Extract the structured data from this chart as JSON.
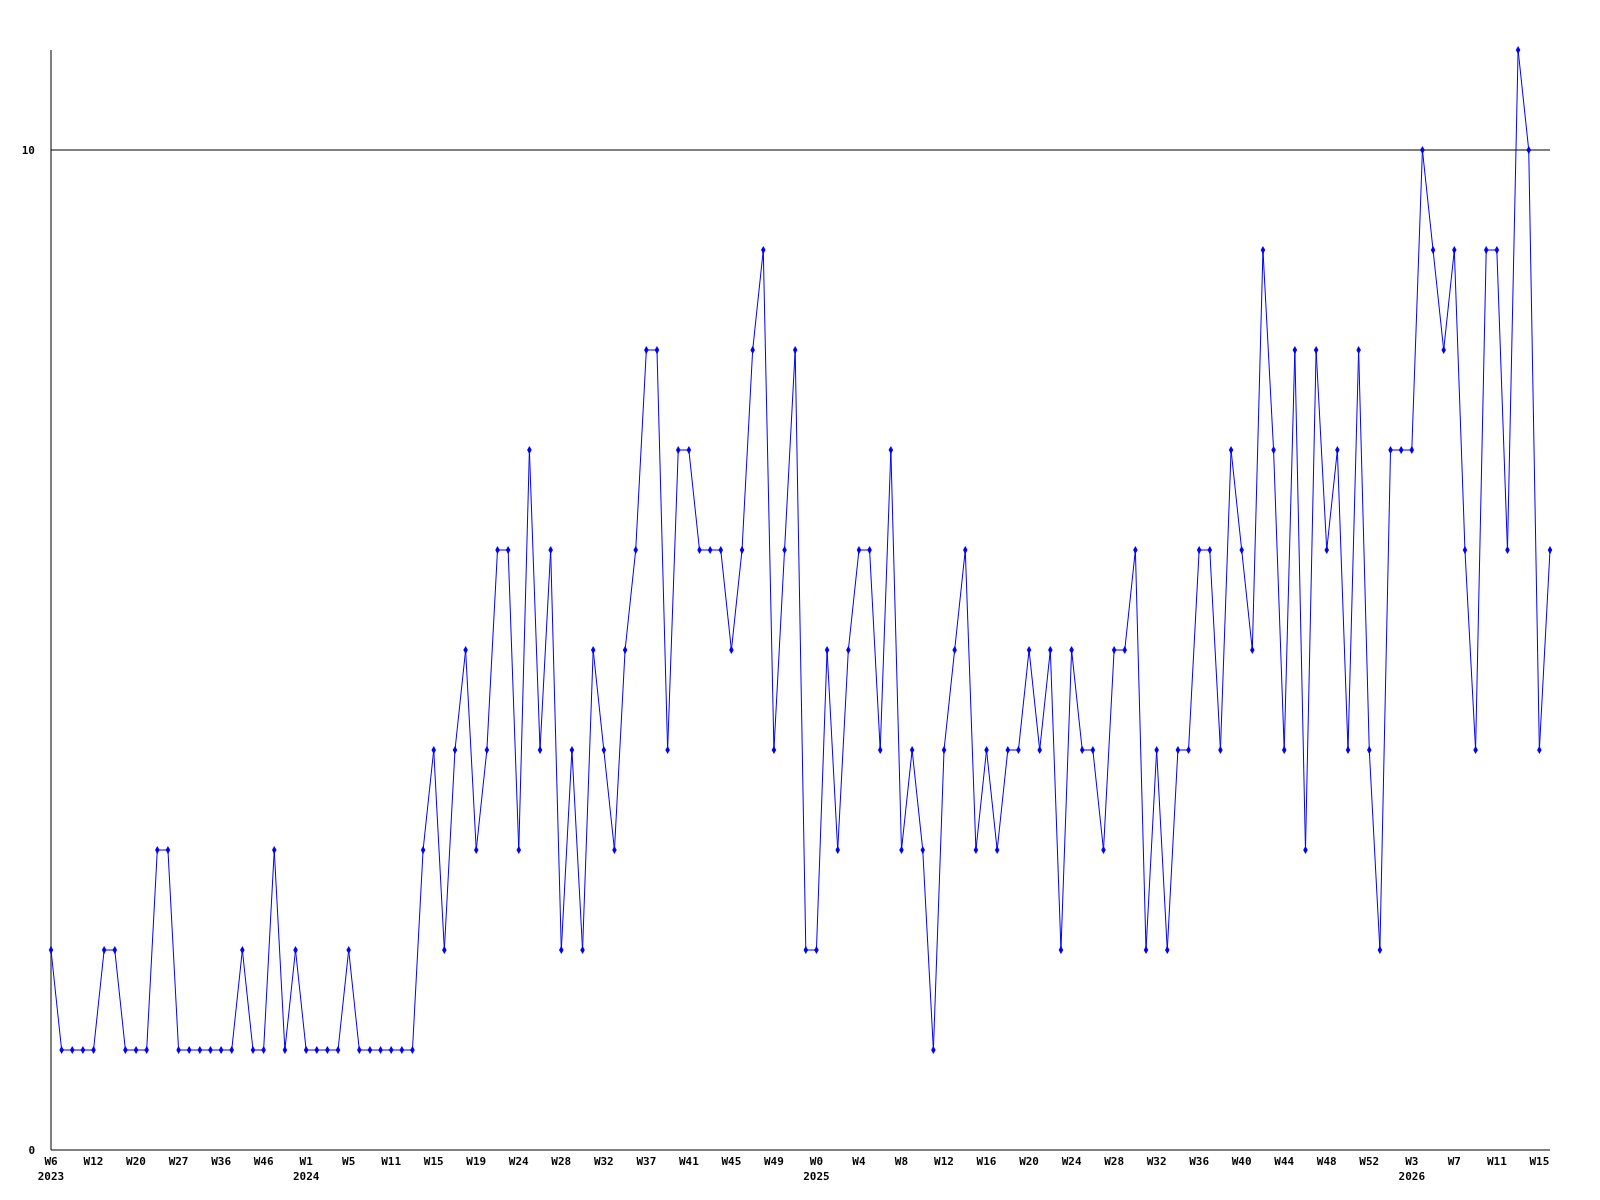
{
  "chart_data": {
    "type": "line",
    "categories": [
      "W6\n2023",
      null,
      null,
      null,
      "W12",
      null,
      null,
      null,
      "W20",
      null,
      null,
      null,
      "W27",
      null,
      null,
      null,
      "W36",
      null,
      null,
      null,
      "W46",
      null,
      null,
      null,
      "W1\n2024",
      null,
      null,
      null,
      "W5",
      null,
      null,
      null,
      "W11",
      null,
      null,
      null,
      "W15",
      null,
      null,
      null,
      "W19",
      null,
      null,
      null,
      "W24",
      null,
      null,
      null,
      "W28",
      null,
      null,
      null,
      "W32",
      null,
      null,
      null,
      "W37",
      null,
      null,
      null,
      "W41",
      null,
      null,
      null,
      "W45",
      null,
      null,
      null,
      "W49",
      null,
      null,
      null,
      "W0\n2025",
      null,
      null,
      null,
      "W4",
      null,
      null,
      null,
      "W8",
      null,
      null,
      null,
      "W12",
      null,
      null,
      null,
      "W16",
      null,
      null,
      null,
      "W20",
      null,
      null,
      null,
      "W24",
      null,
      null,
      null,
      "W28",
      null,
      null,
      null,
      "W32",
      null,
      null,
      null,
      "W36",
      null,
      null,
      null,
      "W40",
      null,
      null,
      null,
      "W44",
      null,
      null,
      null,
      "W48",
      null,
      null,
      null,
      "W52",
      null,
      null,
      null,
      "W3\n2026",
      null,
      null,
      null,
      "W7",
      null,
      null,
      null,
      "W11",
      null,
      null,
      null,
      "W15",
      null
    ],
    "series": [
      {
        "color": "#0000ff",
        "values": [
          2,
          1,
          1,
          1,
          1,
          2,
          2,
          1,
          1,
          1,
          3,
          3,
          1,
          1,
          1,
          1,
          1,
          1,
          2,
          1,
          1,
          3,
          1,
          2,
          1,
          1,
          1,
          1,
          2,
          1,
          1,
          1,
          1,
          1,
          1,
          3,
          4,
          2,
          4,
          5,
          3,
          4,
          6,
          6,
          3,
          7,
          4,
          6,
          2,
          4,
          2,
          5,
          4,
          3,
          5,
          6,
          8,
          8,
          4,
          7,
          7,
          6,
          6,
          6,
          5,
          6,
          8,
          9,
          4,
          6,
          8,
          2,
          2,
          5,
          3,
          5,
          6,
          6,
          4,
          7,
          3,
          4,
          3,
          1,
          4,
          5,
          6,
          3,
          4,
          3,
          4,
          4,
          5,
          4,
          5,
          2,
          5,
          4,
          4,
          3,
          5,
          5,
          6,
          2,
          4,
          2,
          4,
          4,
          6,
          6,
          4,
          7,
          6,
          5,
          9,
          7,
          4,
          8,
          3,
          8,
          6,
          7,
          4,
          8,
          4,
          2,
          7,
          7,
          7,
          10,
          9,
          8,
          9,
          6,
          4,
          9,
          9,
          6,
          11,
          10,
          4,
          6
        ]
      }
    ],
    "ylim": [
      0,
      11
    ],
    "yticks": [
      0,
      10
    ],
    "grid": "y",
    "marker": "diamond",
    "line_style": "solid"
  }
}
